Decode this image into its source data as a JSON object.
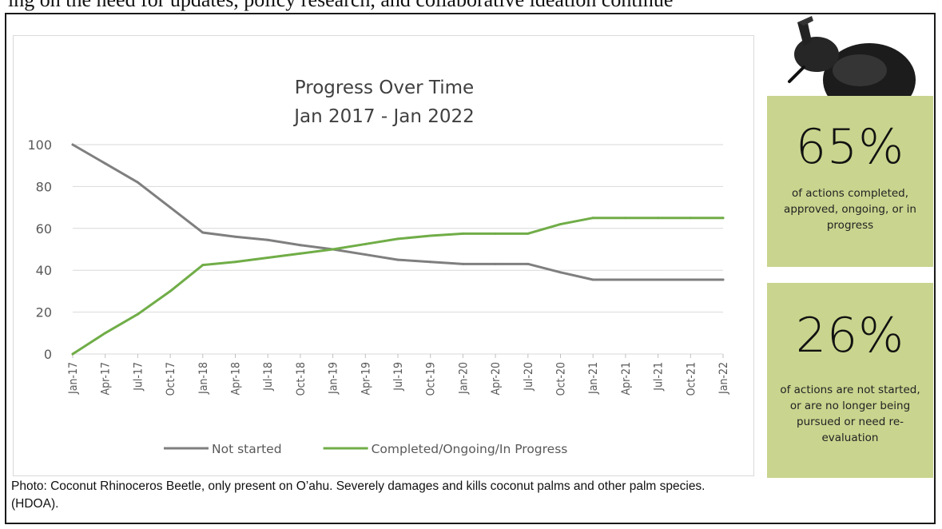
{
  "top_fragment": "ing on the need for updates, policy research, and collaborative ideation continue",
  "chart_data": {
    "type": "line",
    "title": "Progress Over Time",
    "subtitle": "Jan 2017 - Jan 2022",
    "categories": [
      "Jan-17",
      "Apr-17",
      "Jul-17",
      "Oct-17",
      "Jan-18",
      "Apr-18",
      "Jul-18",
      "Oct-18",
      "Jan-19",
      "Apr-19",
      "Jul-19",
      "Oct-19",
      "Jan-20",
      "Apr-20",
      "Jul-20",
      "Oct-20",
      "Jan-21",
      "Apr-21",
      "Jul-21",
      "Oct-21",
      "Jan-22"
    ],
    "yticks": [
      0,
      20,
      40,
      60,
      80,
      100
    ],
    "ylim": [
      0,
      100
    ],
    "grid": true,
    "legend_position": "bottom",
    "series": [
      {
        "name": "Not started",
        "color": "#7f7f7f",
        "values": [
          100,
          91,
          82,
          70,
          58,
          56,
          54.5,
          52,
          50,
          47.5,
          45,
          44,
          43,
          43,
          43,
          39,
          35.5,
          35.5,
          35.5,
          35.5,
          35.5
        ]
      },
      {
        "name": "Completed/Ongoing/In Progress",
        "color": "#70ad47",
        "values": [
          0,
          10,
          19,
          30,
          42.5,
          44,
          46,
          48,
          50,
          52.5,
          55,
          56.5,
          57.5,
          57.5,
          57.5,
          62,
          65,
          65,
          65,
          65,
          65
        ]
      }
    ]
  },
  "caption": "Photo: Coconut Rhinoceros Beetle, only present on O’ahu. Severely damages and kills coconut palms and other palm species.  (HDOA).",
  "stats": [
    {
      "value": "65%",
      "description": "of actions completed, approved, ongoing, or in progress"
    },
    {
      "value": "26%",
      "description": "of actions are not started, or are no longer being pursued or need re-evaluation"
    }
  ],
  "colors": {
    "stat_box": "#c9d48e",
    "not_started": "#7f7f7f",
    "completed": "#70ad47"
  }
}
